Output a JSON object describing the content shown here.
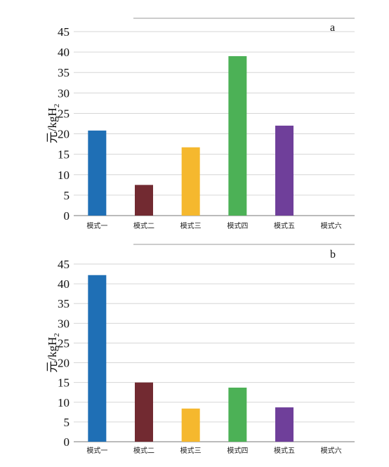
{
  "chart_data": [
    {
      "panel_label": "b",
      "type": "bar",
      "categories": [
        "模式一",
        "模式二",
        "模式三",
        "模式四",
        "模式五",
        "模式六"
      ],
      "values": [
        42.2,
        15.0,
        8.4,
        13.7,
        8.7,
        0
      ],
      "colors": [
        "#1f6fb5",
        "#722a31",
        "#f5b82e",
        "#4cb156",
        "#6f3f9a",
        "#cccccc"
      ],
      "ylim": [
        0,
        45
      ],
      "yticks": [
        0,
        5,
        10,
        15,
        20,
        25,
        30,
        35,
        40,
        45
      ],
      "ylabel": "元/kgH",
      "ylabel_sub": "2",
      "grid": true
    },
    {
      "panel_label": "a",
      "type": "bar",
      "categories": [
        "模式一",
        "模式二",
        "模式三",
        "模式四",
        "模式五",
        "模式六"
      ],
      "values": [
        20.8,
        7.5,
        16.7,
        39.0,
        22.0,
        0
      ],
      "colors": [
        "#1f6fb5",
        "#722a31",
        "#f5b82e",
        "#4cb156",
        "#6f3f9a",
        "#cccccc"
      ],
      "ylim": [
        0,
        45
      ],
      "yticks": [
        0,
        5,
        10,
        15,
        20,
        25,
        30,
        35,
        40,
        45
      ],
      "ylabel": "元/kgH",
      "ylabel_sub": "2",
      "grid": true
    }
  ]
}
